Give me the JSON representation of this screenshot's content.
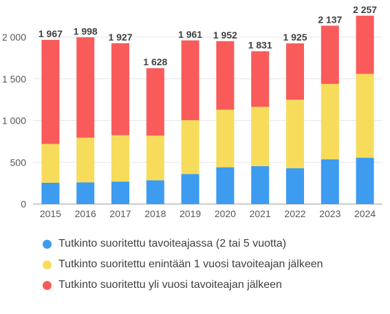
{
  "colors": {
    "on_time": "#3d9bf0",
    "within_one_year": "#f7dc5c",
    "over_one_year": "#f95b5b"
  },
  "chart_data": {
    "type": "bar",
    "stacked": true,
    "categories": [
      "2015",
      "2016",
      "2017",
      "2018",
      "2019",
      "2020",
      "2021",
      "2022",
      "2023",
      "2024"
    ],
    "series": [
      {
        "name": "Tutkinto suoritettu tavoiteajassa (2 tai 5 vuotta)",
        "color": "#3d9bf0",
        "values": [
          255,
          260,
          270,
          285,
          360,
          440,
          455,
          430,
          535,
          555
        ]
      },
      {
        "name": "Tutkinto suoritettu enintään 1 vuosi tavoiteajan jälkeen",
        "color": "#f7dc5c",
        "values": [
          465,
          535,
          555,
          535,
          645,
          690,
          710,
          820,
          905,
          1005
        ]
      },
      {
        "name": "Tutkinto suoritettu yli vuosi tavoiteajan jälkeen",
        "color": "#f95b5b",
        "values": [
          1247,
          1203,
          1102,
          808,
          956,
          822,
          666,
          675,
          697,
          697
        ]
      }
    ],
    "totals": [
      1967,
      1998,
      1927,
      1628,
      1961,
      1952,
      1831,
      1925,
      2137,
      2257
    ],
    "total_labels": [
      "1 967",
      "1 998",
      "1 927",
      "1 628",
      "1 961",
      "1 952",
      "1 831",
      "1 925",
      "2 137",
      "2 257"
    ],
    "y_ticks": [
      0,
      500,
      1000,
      1500,
      2000
    ],
    "y_tick_labels": [
      "0",
      "500",
      "1 000",
      "1 500",
      "2 000"
    ],
    "ylim": [
      0,
      2280
    ],
    "grid": true,
    "legend_position": "bottom"
  }
}
